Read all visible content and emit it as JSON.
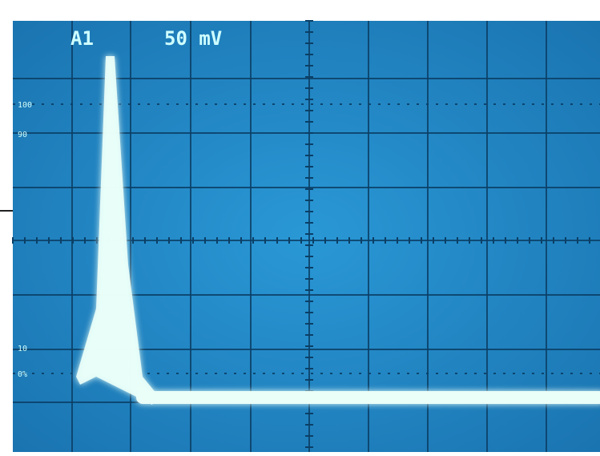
{
  "screen": {
    "channel_label": "A1",
    "scale_label": "50 mV",
    "graticule_labels": [
      "100",
      "90",
      "10",
      "0%"
    ],
    "colors": {
      "screen_bg": "#1f86c4",
      "grid": "#0b3f66",
      "trace": "#eafff8",
      "trace_glow": "#9ff3ff",
      "label": "#cfffff",
      "outer_bg": "#ffffff"
    }
  }
}
